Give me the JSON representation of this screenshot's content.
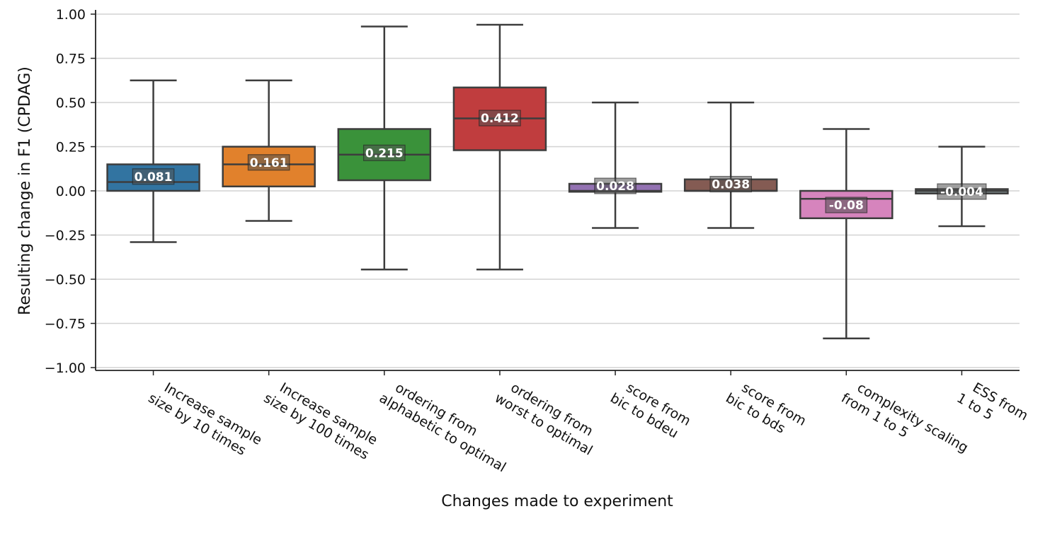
{
  "chart_data": {
    "type": "box",
    "xlabel": "Changes made to experiment",
    "ylabel": "Resulting change in F1 (CPDAG)",
    "ylim": [
      -1.0,
      1.0
    ],
    "yticks": [
      "1.00",
      "0.75",
      "0.50",
      "0.25",
      "0.00",
      "−0.25",
      "−0.50",
      "−0.75",
      "−1.00"
    ],
    "ytick_values": [
      1.0,
      0.75,
      0.5,
      0.25,
      0.0,
      -0.25,
      -0.5,
      -0.75,
      -1.0
    ],
    "grid": "horizontal",
    "categories": [
      {
        "label": "Increase sample\nsize by 10 times",
        "color": "#3274a1",
        "whisker_low": -0.29,
        "q1": 0.0,
        "median": 0.05,
        "q3": 0.15,
        "whisker_high": 0.625,
        "mean_label": "0.081",
        "mean": 0.081
      },
      {
        "label": "Increase sample\nsize by 100 times",
        "color": "#e1812c",
        "whisker_low": -0.17,
        "q1": 0.025,
        "median": 0.15,
        "q3": 0.25,
        "whisker_high": 0.625,
        "mean_label": "0.161",
        "mean": 0.161
      },
      {
        "label": "ordering from\nalphabetic to optimal",
        "color": "#3a923a",
        "whisker_low": -0.445,
        "q1": 0.06,
        "median": 0.205,
        "q3": 0.35,
        "whisker_high": 0.93,
        "mean_label": "0.215",
        "mean": 0.215
      },
      {
        "label": "ordering from\nworst to optimal",
        "color": "#c03d3e",
        "whisker_low": -0.445,
        "q1": 0.23,
        "median": 0.41,
        "q3": 0.585,
        "whisker_high": 0.94,
        "mean_label": "0.412",
        "mean": 0.412
      },
      {
        "label": "score from\nbic to bdeu",
        "color": "#9372b2",
        "whisker_low": -0.21,
        "q1": -0.005,
        "median": 0.0,
        "q3": 0.04,
        "whisker_high": 0.5,
        "mean_label": "0.028",
        "mean": 0.028
      },
      {
        "label": "score from\nbic to bds",
        "color": "#845b53",
        "whisker_low": -0.21,
        "q1": 0.0,
        "median": 0.0,
        "q3": 0.065,
        "whisker_high": 0.5,
        "mean_label": "0.038",
        "mean": 0.038
      },
      {
        "label": "complexity scaling\nfrom 1 to 5",
        "color": "#d684bd",
        "whisker_low": -0.835,
        "q1": -0.155,
        "median": -0.045,
        "q3": 0.0,
        "whisker_high": 0.35,
        "mean_label": "-0.08",
        "mean": -0.08
      },
      {
        "label": "ESS from\n1 to 5",
        "color": "#7f8c8d",
        "whisker_low": -0.2,
        "q1": -0.015,
        "median": 0.0,
        "q3": 0.01,
        "whisker_high": 0.25,
        "mean_label": "-0.004",
        "mean": -0.004
      }
    ]
  }
}
